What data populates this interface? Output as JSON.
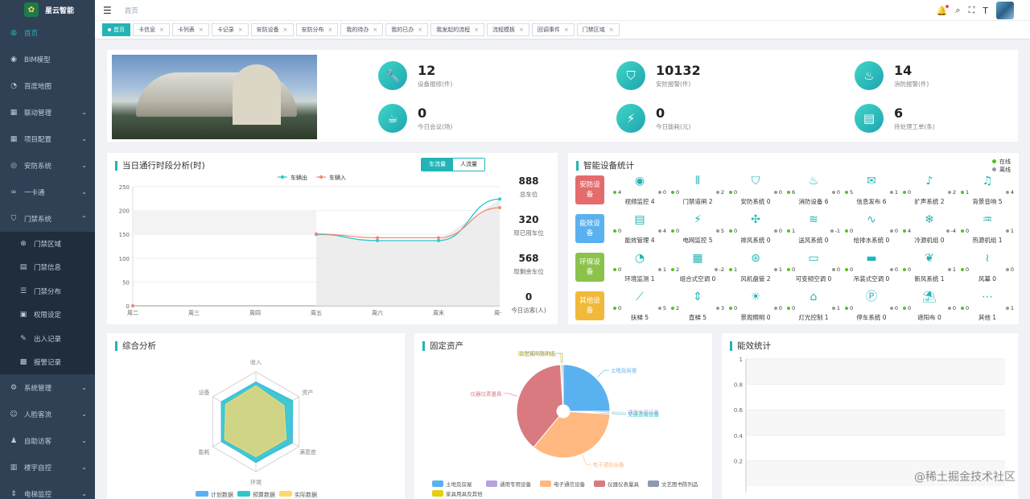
{
  "app": {
    "name": "星云智能"
  },
  "sidebar": {
    "items": [
      {
        "label": "首页",
        "icon": "dashboard-icon",
        "active": true
      },
      {
        "label": "BIM模型",
        "icon": "eye-icon"
      },
      {
        "label": "百度地图",
        "icon": "map-icon"
      },
      {
        "label": "联动管理",
        "icon": "grid-icon",
        "expandable": true
      },
      {
        "label": "项目配置",
        "icon": "grid-icon",
        "expandable": true
      },
      {
        "label": "安防系统",
        "icon": "security-icon",
        "expandable": true
      },
      {
        "label": "一卡通",
        "icon": "link-icon",
        "expandable": true
      },
      {
        "label": "门禁系统",
        "icon": "shield-icon",
        "expandable": true,
        "open": true
      }
    ],
    "submenu": [
      {
        "label": "门禁区域",
        "icon": "area-icon"
      },
      {
        "label": "门禁信息",
        "icon": "doc-icon"
      },
      {
        "label": "门禁分布",
        "icon": "list-icon"
      },
      {
        "label": "权限设定",
        "icon": "lock-icon"
      },
      {
        "label": "出入记录",
        "icon": "edit-icon"
      },
      {
        "label": "报警记录",
        "icon": "alarm-icon"
      }
    ],
    "items_after": [
      {
        "label": "系统管理",
        "icon": "gear-icon"
      },
      {
        "label": "人脸客流",
        "icon": "face-icon"
      },
      {
        "label": "自助访客",
        "icon": "user-icon"
      },
      {
        "label": "楼宇自控",
        "icon": "building-icon"
      },
      {
        "label": "电梯监控",
        "icon": "elevator-icon"
      }
    ]
  },
  "header": {
    "breadcrumb": "首页"
  },
  "tags": [
    "首页",
    "卡信息",
    "卡列表",
    "卡记录",
    "安防设备",
    "安防分布",
    "我的待办",
    "我的已办",
    "我发起的流程",
    "流程模板",
    "回调事件",
    "门禁区域"
  ],
  "stats": [
    {
      "value": "12",
      "label": "设备报修(件)",
      "icon": "wrench-icon"
    },
    {
      "value": "10132",
      "label": "安防报警(件)",
      "icon": "shield-icon"
    },
    {
      "value": "14",
      "label": "消防报警(件)",
      "icon": "extinguisher-icon"
    },
    {
      "value": "0",
      "label": "今日会议(场)",
      "icon": "meeting-icon"
    },
    {
      "value": "0",
      "label": "今日能耗(元)",
      "icon": "energy-icon"
    },
    {
      "value": "6",
      "label": "待处理工单(条)",
      "icon": "clipboard-icon"
    }
  ],
  "traffic": {
    "title": "当日通行时段分析(时)",
    "tabs": [
      "车流量",
      "人流量"
    ],
    "kpis": [
      {
        "value": "888",
        "label": "总车位"
      },
      {
        "value": "320",
        "label": "现已用车位"
      },
      {
        "value": "568",
        "label": "现剩余车位"
      },
      {
        "value": "0",
        "label": "今日访客(人)"
      }
    ]
  },
  "chart_data": [
    {
      "type": "line",
      "title": "当日通行时段分析(时)",
      "categories": [
        "周二",
        "周三",
        "周四",
        "周五",
        "周六",
        "周末",
        "周一"
      ],
      "ylim": [
        0,
        250
      ],
      "yticks": [
        0,
        50,
        100,
        150,
        200,
        250
      ],
      "series": [
        {
          "name": "车辆出",
          "color": "#2ec7c9",
          "values": [
            0,
            null,
            null,
            150,
            137,
            137,
            224
          ]
        },
        {
          "name": "车辆入",
          "color": "#f08d7b",
          "values": [
            0,
            null,
            null,
            151,
            143,
            143,
            206
          ]
        }
      ]
    },
    {
      "type": "radar",
      "title": "综合分析",
      "indicators": [
        "收入",
        "资产",
        "满意度",
        "环境",
        "能耗",
        "设备"
      ],
      "legend": [
        "计划数据",
        "预算数据",
        "实际数据"
      ],
      "series": [
        {
          "name": "计划数据",
          "color": "#5ab1ef",
          "values": [
            0.8,
            0.85,
            0.85,
            0.8,
            0.8,
            0.8
          ]
        },
        {
          "name": "预算数据",
          "color": "#2ec7c9",
          "values": [
            0.78,
            0.85,
            0.82,
            0.82,
            0.78,
            0.8
          ]
        },
        {
          "name": "实际数据",
          "color": "#ffd86b",
          "values": [
            0.72,
            0.65,
            0.7,
            0.7,
            0.72,
            0.7
          ]
        }
      ]
    },
    {
      "type": "pie",
      "title": "固定资产",
      "slices": [
        {
          "name": "土地及房屋",
          "value": 25,
          "color": "#5ab1ef"
        },
        {
          "name": "通用专用设备",
          "value": 0.5,
          "color": "#b6a2de"
        },
        {
          "name": "交通运输设备",
          "value": 0.5,
          "color": "#2ec7c9"
        },
        {
          "name": "电子通信设备",
          "value": 35,
          "color": "#ffb980"
        },
        {
          "name": "仪器仪表量具",
          "value": 38,
          "color": "#d87a80"
        },
        {
          "name": "家具用具及其他",
          "value": 0.5,
          "color": "#e5cf0d"
        },
        {
          "name": "文艺图书陈列品",
          "value": 0.5,
          "color": "#8d98b3"
        }
      ],
      "legend": [
        "土地及房屋",
        "通用专用设备",
        "电子通信设备",
        "仪器仪表量具",
        "文艺图书陈列品",
        "家具用具及其他"
      ]
    },
    {
      "type": "bar",
      "title": "能效统计",
      "ylim": [
        0,
        1
      ],
      "yticks": [
        1,
        0.8,
        0.6,
        0.4,
        0.2
      ],
      "values": []
    }
  ],
  "devices": {
    "title": "智能设备统计",
    "legend": [
      {
        "label": "在线",
        "color": "#52c41a"
      },
      {
        "label": "离线",
        "color": "#999999"
      }
    ],
    "categories": [
      {
        "name": "安防设备",
        "color": "#e46c6c",
        "items": [
          {
            "name": "视频监控 4",
            "on": "4",
            "off": "0",
            "icon": "camera-icon",
            "glyph": "◉"
          },
          {
            "name": "门禁道闸 2",
            "on": "0",
            "off": "2",
            "icon": "gate-icon",
            "glyph": "⫴"
          },
          {
            "name": "安防系统 0",
            "on": "0",
            "off": "0",
            "icon": "shield-icon",
            "glyph": "⛉"
          },
          {
            "name": "消防设备 6",
            "on": "6",
            "off": "0",
            "icon": "extinguisher-icon",
            "glyph": "♨"
          },
          {
            "name": "信息发布 6",
            "on": "5",
            "off": "1",
            "icon": "message-icon",
            "glyph": "✉"
          },
          {
            "name": "扩声系统 2",
            "on": "0",
            "off": "2",
            "icon": "speaker-icon",
            "glyph": "♪"
          },
          {
            "name": "背景音响 5",
            "on": "1",
            "off": "4",
            "icon": "audio-icon",
            "glyph": "♫"
          }
        ]
      },
      {
        "name": "能效设备",
        "color": "#5ab1ef",
        "items": [
          {
            "name": "能效管理 4",
            "on": "0",
            "off": "4",
            "icon": "chart-icon",
            "glyph": "▤"
          },
          {
            "name": "电网监控 5",
            "on": "0",
            "off": "5",
            "icon": "power-icon",
            "glyph": "⚡"
          },
          {
            "name": "排风系统 0",
            "on": "0",
            "off": "0",
            "icon": "fan-icon",
            "glyph": "✣"
          },
          {
            "name": "送风系统 0",
            "on": "1",
            "off": "-1",
            "icon": "wind-icon",
            "glyph": "≋"
          },
          {
            "name": "给排水系统 0",
            "on": "0",
            "off": "0",
            "icon": "water-icon",
            "glyph": "∿"
          },
          {
            "name": "冷源机组 0",
            "on": "4",
            "off": "-4",
            "icon": "snow-icon",
            "glyph": "❄"
          },
          {
            "name": "热源机组 1",
            "on": "0",
            "off": "1",
            "icon": "heat-icon",
            "glyph": "♒"
          }
        ]
      },
      {
        "name": "环保设备",
        "color": "#8bc34a",
        "items": [
          {
            "name": "环境监测 1",
            "on": "0",
            "off": "1",
            "icon": "monitor-icon",
            "glyph": "◔"
          },
          {
            "name": "组合式空调 0",
            "on": "2",
            "off": "-2",
            "icon": "ac-icon",
            "glyph": "▦"
          },
          {
            "name": "风机盘管 2",
            "on": "1",
            "off": "1",
            "icon": "coil-icon",
            "glyph": "⊛"
          },
          {
            "name": "可变频空调 0",
            "on": "0",
            "off": "0",
            "icon": "ac-icon",
            "glyph": "▭"
          },
          {
            "name": "吊装式空调 0",
            "on": "0",
            "off": "0",
            "icon": "ac-icon",
            "glyph": "▬"
          },
          {
            "name": "新风系统 1",
            "on": "0",
            "off": "1",
            "icon": "leaf-icon",
            "glyph": "❦"
          },
          {
            "name": "风幕 0",
            "on": "0",
            "off": "0",
            "icon": "curtain-icon",
            "glyph": "≀"
          }
        ]
      },
      {
        "name": "其他设备",
        "color": "#f0b93b",
        "items": [
          {
            "name": "扶梯 5",
            "on": "0",
            "off": "5",
            "icon": "escalator-icon",
            "glyph": "⟋"
          },
          {
            "name": "直梯 5",
            "on": "2",
            "off": "3",
            "icon": "elevator-icon",
            "glyph": "⇕"
          },
          {
            "name": "景观照明 0",
            "on": "0",
            "off": "0",
            "icon": "light-icon",
            "glyph": "☀"
          },
          {
            "name": "灯光控制 1",
            "on": "0",
            "off": "1",
            "icon": "lamp-icon",
            "glyph": "⌂"
          },
          {
            "name": "停车系统 0",
            "on": "0",
            "off": "0",
            "icon": "parking-icon",
            "glyph": "Ⓟ"
          },
          {
            "name": "遮阳布 0",
            "on": "0",
            "off": "0",
            "icon": "shade-icon",
            "glyph": "⛱"
          },
          {
            "name": "其他 1",
            "on": "0",
            "off": "1",
            "icon": "more-icon",
            "glyph": "⋯"
          }
        ]
      }
    ]
  },
  "panels": {
    "analysis": "综合分析",
    "assets": "固定资产",
    "energy": "能效统计"
  },
  "watermark": "@稀土掘金技术社区"
}
